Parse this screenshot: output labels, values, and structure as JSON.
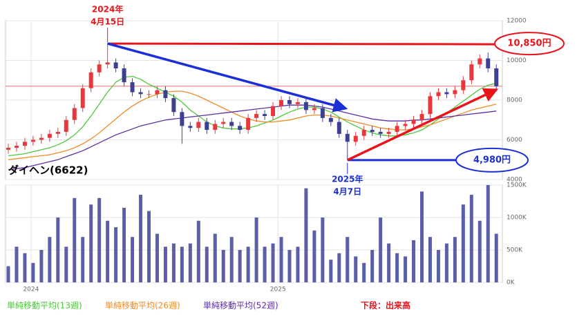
{
  "chart_data": {
    "type": "candlestick",
    "name": "ダイヘン(6622)",
    "open": [
      5500,
      5600,
      5700,
      5900,
      6000,
      6100,
      6300,
      6400,
      7000,
      7600,
      8600,
      9400,
      9800,
      9900,
      9600,
      8900,
      8400,
      8300,
      8300,
      8500,
      8100,
      7400,
      6700,
      6600,
      6900,
      6500,
      6800,
      6900,
      6700,
      6500,
      7100,
      7300,
      7200,
      7700,
      8000,
      7800,
      7900,
      7500,
      7600,
      7100,
      6900,
      6300,
      5900,
      6200,
      6500,
      6400,
      6300,
      6400,
      6700,
      6800,
      7000,
      7300,
      8200,
      8400,
      8300,
      8500,
      9000,
      9800,
      10100,
      9600
    ],
    "high": [
      5800,
      5900,
      6100,
      6200,
      6300,
      6500,
      6600,
      7200,
      7800,
      8800,
      9600,
      10000,
      10850,
      10100,
      9800,
      9100,
      8600,
      8500,
      8700,
      8700,
      8300,
      7600,
      6900,
      7100,
      7100,
      7000,
      7100,
      7100,
      6900,
      7300,
      7500,
      7500,
      7900,
      8200,
      8200,
      8100,
      8100,
      7800,
      7800,
      7300,
      7100,
      6500,
      6400,
      6700,
      6700,
      6600,
      6600,
      6900,
      7000,
      7200,
      7500,
      8400,
      8600,
      8600,
      8700,
      9200,
      10000,
      10300,
      10400,
      9800
    ],
    "low": [
      5300,
      5400,
      5500,
      5700,
      5800,
      5900,
      6100,
      6200,
      6800,
      7400,
      8400,
      9200,
      9600,
      9400,
      8700,
      8200,
      8100,
      8100,
      8100,
      7900,
      7200,
      5800,
      6400,
      6400,
      6300,
      6300,
      6600,
      6500,
      6300,
      6300,
      6900,
      7000,
      7000,
      7500,
      7600,
      7600,
      7300,
      7300,
      6900,
      6700,
      6100,
      4980,
      5700,
      6000,
      6200,
      6100,
      6100,
      6200,
      6500,
      6600,
      6800,
      7100,
      8000,
      8100,
      8100,
      8300,
      8800,
      9600,
      9400,
      8500
    ],
    "close": [
      5600,
      5700,
      5900,
      6000,
      6100,
      6300,
      6400,
      7000,
      7600,
      8600,
      9400,
      9800,
      9900,
      9600,
      8900,
      8400,
      8300,
      8300,
      8500,
      8100,
      7400,
      6700,
      6600,
      6900,
      6500,
      6800,
      6900,
      6700,
      6500,
      7100,
      7300,
      7200,
      7700,
      8000,
      7800,
      7900,
      7500,
      7600,
      7100,
      6900,
      6300,
      5900,
      6200,
      6500,
      6400,
      6300,
      6400,
      6700,
      6800,
      7000,
      7300,
      8200,
      8400,
      8300,
      8500,
      9000,
      9800,
      10100,
      9600,
      8700
    ],
    "up_color": "#e8383d",
    "down_color": "#3c3f94",
    "series": [
      {
        "name": "単純移動平均(13週)",
        "color": "#4cc83a",
        "values": [
          5200,
          5250,
          5300,
          5400,
          5500,
          5600,
          5750,
          5950,
          6250,
          6650,
          7200,
          7800,
          8400,
          8900,
          9150,
          9200,
          9050,
          8800,
          8600,
          8400,
          8200,
          7900,
          7500,
          7200,
          6900,
          6700,
          6600,
          6550,
          6550,
          6600,
          6700,
          6850,
          7000,
          7200,
          7400,
          7550,
          7650,
          7650,
          7550,
          7400,
          7150,
          6900,
          6700,
          6500,
          6350,
          6250,
          6200,
          6200,
          6250,
          6350,
          6500,
          6750,
          7050,
          7350,
          7650,
          7950,
          8250,
          8550,
          8750,
          8850
        ]
      },
      {
        "name": "単純移動平均(26週)",
        "color": "#f08a24",
        "values": [
          5000,
          5050,
          5100,
          5150,
          5200,
          5250,
          5350,
          5450,
          5600,
          5800,
          6050,
          6350,
          6700,
          7050,
          7400,
          7700,
          7950,
          8150,
          8300,
          8400,
          8450,
          8450,
          8350,
          8200,
          8000,
          7800,
          7600,
          7400,
          7200,
          7050,
          6950,
          6900,
          6900,
          6950,
          7000,
          7100,
          7200,
          7250,
          7250,
          7200,
          7100,
          7000,
          6900,
          6800,
          6700,
          6600,
          6550,
          6500,
          6500,
          6550,
          6650,
          6750,
          6900,
          7050,
          7200,
          7350,
          7500,
          7600,
          7700,
          7800
        ]
      },
      {
        "name": "単純移動平均(52週)",
        "color": "#5a2ea6",
        "values": [
          4500,
          4550,
          4600,
          4700,
          4800,
          4900,
          5000,
          5150,
          5300,
          5450,
          5650,
          5850,
          6050,
          6250,
          6400,
          6550,
          6700,
          6800,
          6900,
          7000,
          7050,
          7100,
          7150,
          7200,
          7250,
          7300,
          7350,
          7400,
          7450,
          7500,
          7550,
          7600,
          7650,
          7700,
          7750,
          7750,
          7750,
          7700,
          7650,
          7550,
          7450,
          7350,
          7250,
          7150,
          7050,
          7000,
          6950,
          6950,
          6950,
          7000,
          7000,
          7050,
          7100,
          7150,
          7200,
          7250,
          7300,
          7350,
          7400,
          7450
        ]
      }
    ],
    "volume": {
      "name": "下段：出来高",
      "color": "#5b5fa8",
      "values": [
        250,
        550,
        450,
        300,
        500,
        700,
        1000,
        550,
        1300,
        700,
        1200,
        1300,
        950,
        850,
        1150,
        700,
        1350,
        1100,
        750,
        550,
        600,
        550,
        600,
        950,
        550,
        750,
        500,
        700,
        500,
        550,
        1000,
        550,
        600,
        700,
        500,
        550,
        1450,
        800,
        1000,
        350,
        450,
        700,
        400,
        300,
        500,
        1000,
        600,
        450,
        400,
        650,
        1400,
        700,
        500,
        600,
        700,
        1200,
        1350,
        950,
        1500,
        750
      ],
      "ylim": [
        0,
        1500
      ],
      "yticks": [
        {
          "value": 0,
          "label": "0K"
        },
        {
          "value": 500,
          "label": "500K"
        },
        {
          "value": 1000,
          "label": "1000K"
        },
        {
          "value": 1500,
          "label": "1500K"
        }
      ]
    },
    "ylim": [
      4000,
      12000
    ],
    "yticks": [
      4000,
      6000,
      8000,
      10000,
      12000
    ],
    "xticks": [
      {
        "value": 2.75,
        "label": "2024"
      },
      {
        "value": 32.6,
        "label": "2025"
      }
    ],
    "grid": true,
    "annotations": {
      "peak": {
        "year": "2024年",
        "date": "4月15日",
        "value": 10850,
        "label": "10,850円"
      },
      "low": {
        "year": "2025年",
        "date": "4月7日",
        "value": 4980,
        "label": "4,980円"
      }
    }
  }
}
